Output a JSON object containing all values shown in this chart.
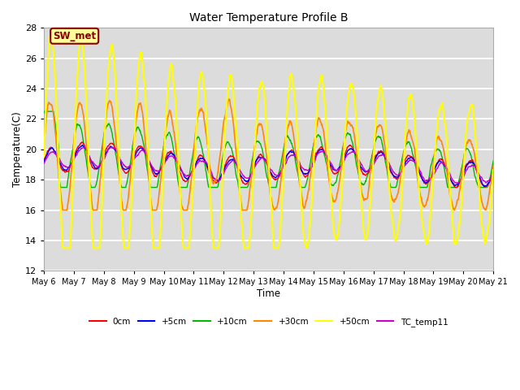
{
  "title": "Water Temperature Profile B",
  "xlabel": "Time",
  "ylabel": "Temperature(C)",
  "ylim": [
    12,
    28
  ],
  "yticks": [
    12,
    14,
    16,
    18,
    20,
    22,
    24,
    26,
    28
  ],
  "axes_bg": "#dcdcdc",
  "grid_color": "white",
  "series_colors": {
    "0cm": "#ff0000",
    "+5cm": "#0000ff",
    "+10cm": "#00bb00",
    "+30cm": "#ff8800",
    "+50cm": "#ffff00",
    "TC_temp11": "#cc00cc"
  },
  "annotation_text": "SW_met",
  "annotation_color": "#8b0000",
  "annotation_bg": "#ffff99",
  "annotation_border": "#8b0000"
}
